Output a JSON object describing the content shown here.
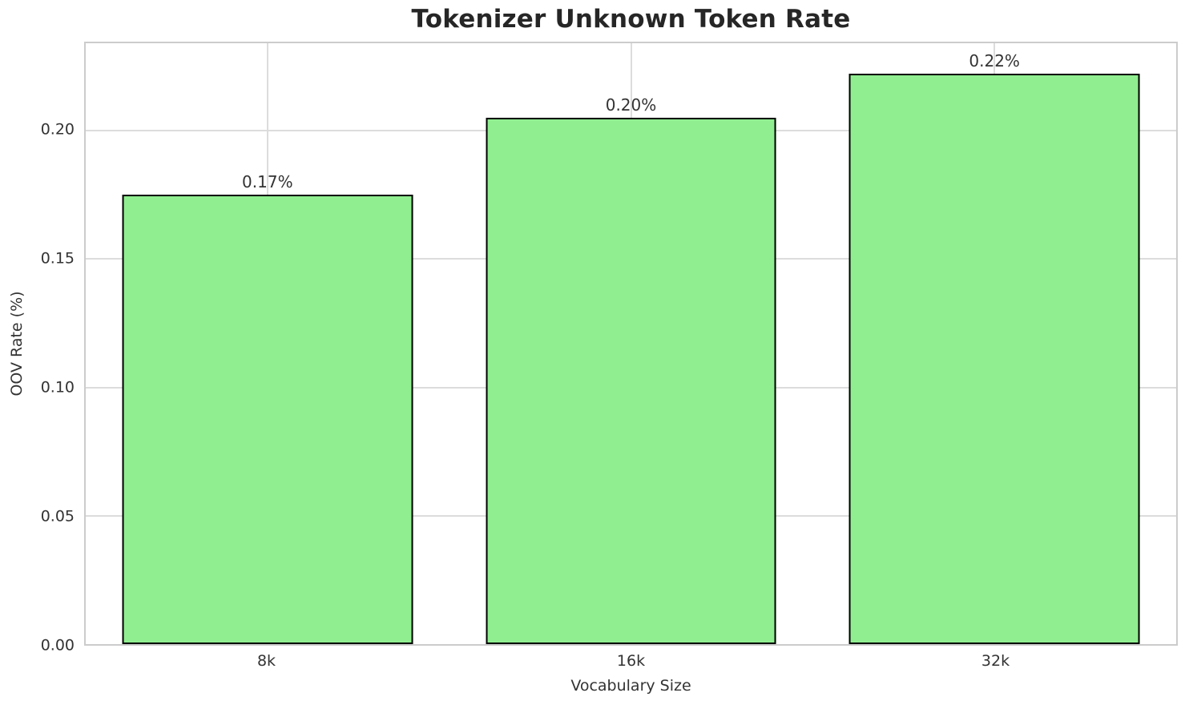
{
  "chart_data": {
    "type": "bar",
    "title": "Tokenizer Unknown Token Rate",
    "xlabel": "Vocabulary Size",
    "ylabel": "OOV Rate (%)",
    "categories": [
      "8k",
      "16k",
      "32k"
    ],
    "values": [
      0.175,
      0.205,
      0.222
    ],
    "bar_labels": [
      "0.17%",
      "0.20%",
      "0.22%"
    ],
    "ylim": [
      0,
      0.234
    ],
    "yticks": [
      0,
      0.05,
      0.1,
      0.15,
      0.2
    ],
    "ytick_labels": [
      "0.00",
      "0.05",
      "0.10",
      "0.15",
      "0.20"
    ],
    "bar_width_fraction": 0.8,
    "grid": true,
    "legend": "none",
    "colors": {
      "bar_fill": "#90EE90",
      "bar_edge": "#000000",
      "grid": "#DCDCDC",
      "spine": "#CCCCCC",
      "tick_text": "#333333",
      "title_text": "#262626",
      "label_text": "#333333"
    }
  }
}
